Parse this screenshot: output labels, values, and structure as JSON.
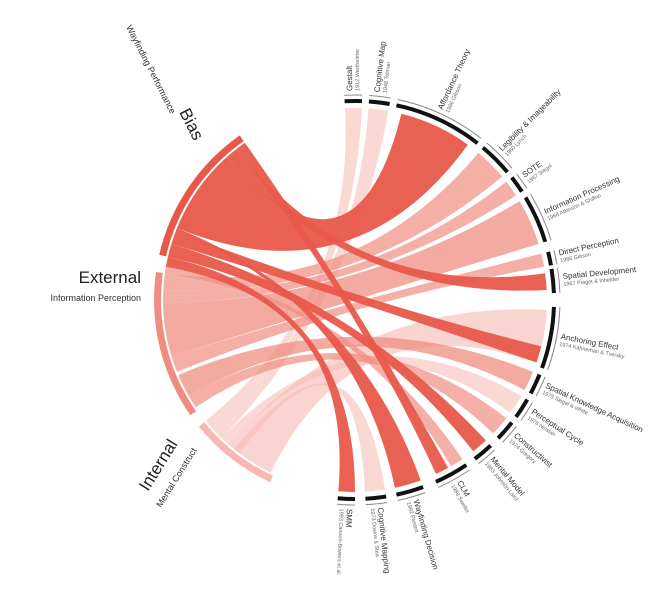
{
  "colors": {
    "bias": "#e8584a",
    "external": "#ef8d82",
    "internal": "#f6b8b0",
    "ink": "#222222"
  },
  "groups": [
    {
      "id": "bias",
      "title": "Bias",
      "subtitle": "Wayfinding Performance"
    },
    {
      "id": "external",
      "title": "External",
      "subtitle": "Information Perception"
    },
    {
      "id": "internal",
      "title": "Internal",
      "subtitle": "Mental Construct"
    }
  ],
  "nodes": [
    {
      "id": "gestalt",
      "name": "Gestalt",
      "cite": "1912 Wertheimer"
    },
    {
      "id": "cogmap",
      "name": "Cognitive Map",
      "cite": "1948 Tolman"
    },
    {
      "id": "affordance",
      "name": "Affordance Theory",
      "cite": "1966 Gibson"
    },
    {
      "id": "legibility",
      "name": "Legibility & Imageability",
      "cite": "1960 Lynch"
    },
    {
      "id": "sote",
      "name": "SOTE",
      "cite": "1967 Siegel"
    },
    {
      "id": "infoproc",
      "name": "Information Processing",
      "cite": "1968 Atkinson & Shiffrin"
    },
    {
      "id": "direct",
      "name": "Direct Perception",
      "cite": "1966 Gibson"
    },
    {
      "id": "spatialdev",
      "name": "Spatial Development",
      "cite": "1967 Piaget & Inhelder"
    },
    {
      "id": "anchoring",
      "name": "Anchoring Effect",
      "cite": "1974 Kahneman & Tversky"
    },
    {
      "id": "spatialknow",
      "name": "Spatial Knowledge Acquisition",
      "cite": "1975 Siegel & White"
    },
    {
      "id": "perceptual",
      "name": "Perceptual Cycle",
      "cite": "1976 Neisser"
    },
    {
      "id": "constructivist",
      "name": "Constructivist",
      "cite": "1974 Gregory"
    },
    {
      "id": "mentalmodel",
      "name": "Mental Model",
      "cite": "1983 Johnson-Laird"
    },
    {
      "id": "clm",
      "name": "CLM",
      "cite": "1988 Sweller"
    },
    {
      "id": "wayfinding",
      "name": "Wayfinding Decision",
      "cite": "1992 Passini"
    },
    {
      "id": "cogmapping",
      "name": "Cognitive Mapping",
      "cite": "1973 Downs & Stea"
    },
    {
      "id": "smm",
      "name": "SMM",
      "cite": "1993 Cannon-Bowers et al."
    }
  ]
}
